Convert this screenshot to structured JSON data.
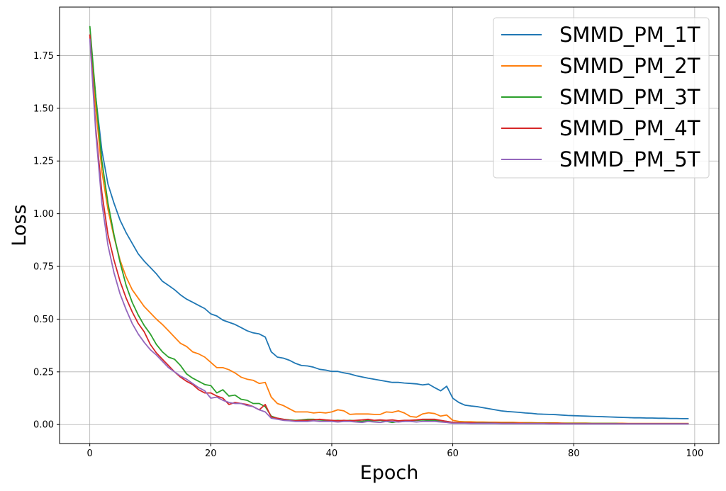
{
  "chart_data": {
    "type": "line",
    "title": "",
    "xlabel": "Epoch",
    "ylabel": "Loss",
    "xlim": [
      -5,
      104
    ],
    "ylim": [
      -0.09,
      1.98
    ],
    "xticks": [
      0,
      20,
      40,
      60,
      80,
      100
    ],
    "yticks": [
      "0.00",
      "0.25",
      "0.50",
      "0.75",
      "1.00",
      "1.25",
      "1.50",
      "1.75"
    ],
    "grid": true,
    "legend": "upper right",
    "series": [
      {
        "name": "SMMD_PM_1T",
        "color": "#1f77b4",
        "values": [
          1.85,
          1.55,
          1.3,
          1.14,
          1.05,
          0.97,
          0.91,
          0.86,
          0.81,
          0.775,
          0.745,
          0.715,
          0.68,
          0.66,
          0.64,
          0.615,
          0.595,
          0.58,
          0.565,
          0.55,
          0.525,
          0.515,
          0.495,
          0.485,
          0.475,
          0.46,
          0.445,
          0.435,
          0.43,
          0.415,
          0.345,
          0.32,
          0.315,
          0.305,
          0.29,
          0.28,
          0.278,
          0.272,
          0.262,
          0.258,
          0.252,
          0.252,
          0.245,
          0.24,
          0.232,
          0.226,
          0.22,
          0.215,
          0.21,
          0.205,
          0.2,
          0.2,
          0.197,
          0.195,
          0.193,
          0.188,
          0.192,
          0.175,
          0.16,
          0.182,
          0.125,
          0.105,
          0.092,
          0.088,
          0.085,
          0.08,
          0.075,
          0.07,
          0.065,
          0.062,
          0.06,
          0.058,
          0.055,
          0.053,
          0.05,
          0.049,
          0.048,
          0.047,
          0.045,
          0.043,
          0.042,
          0.041,
          0.04,
          0.039,
          0.038,
          0.037,
          0.036,
          0.035,
          0.034,
          0.033,
          0.032,
          0.032,
          0.031,
          0.031,
          0.03,
          0.03,
          0.029,
          0.029,
          0.028,
          0.028
        ]
      },
      {
        "name": "SMMD_PM_2T",
        "color": "#ff7f0e",
        "values": [
          1.85,
          1.5,
          1.2,
          1.02,
          0.89,
          0.78,
          0.7,
          0.64,
          0.6,
          0.56,
          0.53,
          0.5,
          0.475,
          0.445,
          0.415,
          0.385,
          0.37,
          0.345,
          0.335,
          0.32,
          0.295,
          0.27,
          0.27,
          0.26,
          0.245,
          0.225,
          0.215,
          0.21,
          0.195,
          0.2,
          0.13,
          0.1,
          0.09,
          0.075,
          0.06,
          0.06,
          0.06,
          0.055,
          0.058,
          0.055,
          0.06,
          0.07,
          0.065,
          0.048,
          0.05,
          0.05,
          0.05,
          0.048,
          0.048,
          0.06,
          0.058,
          0.065,
          0.055,
          0.038,
          0.035,
          0.05,
          0.056,
          0.052,
          0.04,
          0.045,
          0.02,
          0.015,
          0.013,
          0.013,
          0.012,
          0.012,
          0.011,
          0.011,
          0.01,
          0.01,
          0.01,
          0.009,
          0.009,
          0.009,
          0.008,
          0.008,
          0.008,
          0.008,
          0.007,
          0.007,
          0.007,
          0.007,
          0.007,
          0.006,
          0.006,
          0.006,
          0.006,
          0.006,
          0.006,
          0.005,
          0.005,
          0.005,
          0.005,
          0.005,
          0.005,
          0.005,
          0.005,
          0.005,
          0.005,
          0.005
        ]
      },
      {
        "name": "SMMD_PM_3T",
        "color": "#2ca02c",
        "values": [
          1.89,
          1.55,
          1.25,
          1.05,
          0.9,
          0.77,
          0.66,
          0.58,
          0.52,
          0.47,
          0.43,
          0.38,
          0.345,
          0.32,
          0.31,
          0.28,
          0.24,
          0.22,
          0.205,
          0.19,
          0.185,
          0.15,
          0.165,
          0.135,
          0.14,
          0.12,
          0.115,
          0.1,
          0.1,
          0.085,
          0.04,
          0.03,
          0.025,
          0.022,
          0.02,
          0.022,
          0.025,
          0.025,
          0.022,
          0.02,
          0.018,
          0.02,
          0.018,
          0.02,
          0.018,
          0.015,
          0.02,
          0.018,
          0.02,
          0.015,
          0.01,
          0.015,
          0.015,
          0.02,
          0.02,
          0.022,
          0.02,
          0.02,
          0.018,
          0.015,
          0.01,
          0.009,
          0.009,
          0.008,
          0.008,
          0.008,
          0.008,
          0.007,
          0.007,
          0.007,
          0.007,
          0.006,
          0.006,
          0.006,
          0.006,
          0.006,
          0.006,
          0.005,
          0.005,
          0.005,
          0.005,
          0.005,
          0.005,
          0.005,
          0.005,
          0.005,
          0.005,
          0.005,
          0.004,
          0.004,
          0.004,
          0.004,
          0.004,
          0.004,
          0.004,
          0.004,
          0.004,
          0.004,
          0.004,
          0.004
        ]
      },
      {
        "name": "SMMD_PM_4T",
        "color": "#d62728",
        "values": [
          1.85,
          1.4,
          1.1,
          0.9,
          0.78,
          0.68,
          0.6,
          0.535,
          0.48,
          0.44,
          0.38,
          0.34,
          0.31,
          0.28,
          0.25,
          0.225,
          0.205,
          0.19,
          0.165,
          0.15,
          0.15,
          0.135,
          0.125,
          0.095,
          0.105,
          0.1,
          0.095,
          0.085,
          0.07,
          0.095,
          0.035,
          0.03,
          0.025,
          0.02,
          0.018,
          0.02,
          0.02,
          0.022,
          0.025,
          0.022,
          0.02,
          0.018,
          0.02,
          0.018,
          0.02,
          0.022,
          0.025,
          0.02,
          0.022,
          0.02,
          0.022,
          0.018,
          0.02,
          0.02,
          0.022,
          0.025,
          0.025,
          0.025,
          0.02,
          0.015,
          0.01,
          0.008,
          0.008,
          0.008,
          0.007,
          0.007,
          0.007,
          0.007,
          0.006,
          0.006,
          0.006,
          0.006,
          0.005,
          0.005,
          0.005,
          0.005,
          0.005,
          0.005,
          0.005,
          0.004,
          0.004,
          0.004,
          0.004,
          0.004,
          0.004,
          0.004,
          0.004,
          0.004,
          0.004,
          0.004,
          0.004,
          0.004,
          0.004,
          0.004,
          0.004,
          0.004,
          0.004,
          0.004,
          0.004,
          0.004
        ]
      },
      {
        "name": "SMMD_PM_5T",
        "color": "#9467bd",
        "values": [
          1.83,
          1.38,
          1.05,
          0.85,
          0.72,
          0.62,
          0.545,
          0.48,
          0.43,
          0.39,
          0.355,
          0.33,
          0.3,
          0.27,
          0.25,
          0.23,
          0.215,
          0.195,
          0.175,
          0.16,
          0.125,
          0.13,
          0.115,
          0.105,
          0.1,
          0.1,
          0.09,
          0.085,
          0.07,
          0.06,
          0.03,
          0.025,
          0.02,
          0.018,
          0.015,
          0.015,
          0.015,
          0.018,
          0.015,
          0.015,
          0.015,
          0.012,
          0.015,
          0.015,
          0.012,
          0.01,
          0.015,
          0.012,
          0.01,
          0.015,
          0.015,
          0.012,
          0.015,
          0.015,
          0.012,
          0.015,
          0.015,
          0.015,
          0.012,
          0.01,
          0.006,
          0.006,
          0.006,
          0.005,
          0.005,
          0.005,
          0.005,
          0.005,
          0.004,
          0.004,
          0.004,
          0.004,
          0.004,
          0.004,
          0.004,
          0.004,
          0.003,
          0.003,
          0.003,
          0.003,
          0.003,
          0.003,
          0.003,
          0.003,
          0.003,
          0.003,
          0.003,
          0.003,
          0.003,
          0.003,
          0.003,
          0.003,
          0.003,
          0.003,
          0.003,
          0.003,
          0.003,
          0.003,
          0.003,
          0.003
        ]
      }
    ]
  }
}
